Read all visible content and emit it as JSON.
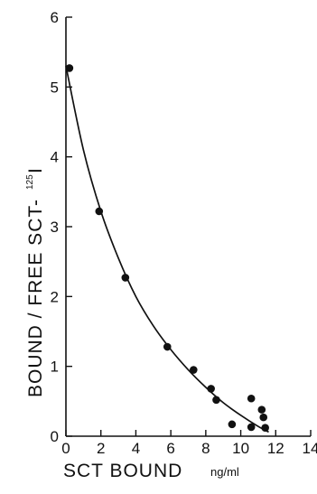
{
  "chart_data": {
    "type": "scatter",
    "title": "",
    "xlabel": "SCT BOUND",
    "xlabel_unit": "ng/ml",
    "ylabel": "BOUND / FREE SCT-",
    "ylabel_isotope": "125",
    "ylabel_suffix": "I",
    "xlim": [
      0,
      14
    ],
    "ylim": [
      0,
      6
    ],
    "x_ticks": [
      "0",
      "2",
      "4",
      "6",
      "8",
      "10",
      "12",
      "14"
    ],
    "y_ticks": [
      "0",
      "1",
      "2",
      "3",
      "4",
      "5",
      "6"
    ],
    "grid": false,
    "series": [
      {
        "points": [
          [
            0.2,
            5.27
          ],
          [
            1.9,
            3.22
          ],
          [
            3.4,
            2.27
          ],
          [
            5.8,
            1.28
          ],
          [
            7.3,
            0.95
          ],
          [
            8.3,
            0.68
          ],
          [
            8.6,
            0.52
          ],
          [
            9.5,
            0.17
          ],
          [
            10.6,
            0.54
          ],
          [
            10.6,
            0.13
          ],
          [
            11.2,
            0.38
          ],
          [
            11.3,
            0.27
          ],
          [
            11.4,
            0.12
          ]
        ]
      }
    ],
    "fit_curve": [
      [
        0.0,
        5.3
      ],
      [
        1.0,
        4.1
      ],
      [
        2.0,
        3.22
      ],
      [
        3.0,
        2.55
      ],
      [
        4.0,
        2.0
      ],
      [
        5.0,
        1.58
      ],
      [
        6.0,
        1.24
      ],
      [
        7.0,
        0.95
      ],
      [
        8.0,
        0.7
      ],
      [
        9.0,
        0.48
      ],
      [
        10.0,
        0.3
      ],
      [
        11.0,
        0.14
      ],
      [
        11.6,
        0.06
      ]
    ]
  }
}
